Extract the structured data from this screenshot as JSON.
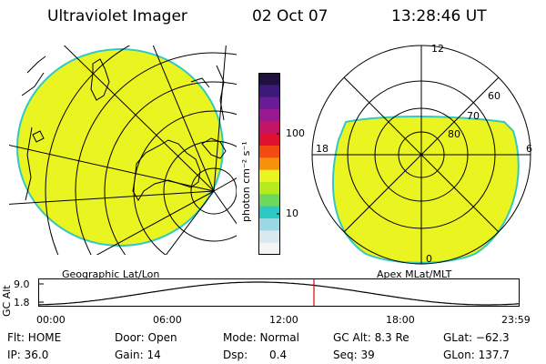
{
  "header": {
    "title": "Ultraviolet Imager",
    "date": "02 Oct 07",
    "time": "13:28:46 UT"
  },
  "colors": {
    "emission_fill": "#eaf421",
    "emission_edge": "#33c9c3",
    "grid_line": "#000000",
    "time_marker": "#e00000"
  },
  "left_map": {
    "caption": "Geographic Lat/Lon"
  },
  "color_bar": {
    "unit_label": "photon cm⁻² s⁻¹",
    "tick_labels": [
      "100",
      "10"
    ],
    "colors_top_to_bottom": [
      "#201040",
      "#3b1a7a",
      "#6a1c96",
      "#9a1890",
      "#c41464",
      "#e0102e",
      "#f24a10",
      "#f6910c",
      "#eaf421",
      "#b8ea20",
      "#6cd85c",
      "#2cc9c4",
      "#9ad8e4",
      "#d8e8ee",
      "#f4f4f4"
    ]
  },
  "polar_plot": {
    "caption": "Apex MLat/MLT",
    "mlt_labels": {
      "top": "12",
      "left": "18",
      "right": "6",
      "bottom": "0"
    },
    "lat_labels": [
      "60",
      "70",
      "80"
    ]
  },
  "altitude_strip": {
    "axis_label": "GC Alt",
    "y_ticks": [
      "9.0",
      "1.8"
    ],
    "x_ticks": [
      "00:00",
      "06:00",
      "12:00",
      "18:00",
      "23:59"
    ]
  },
  "status": {
    "flt": "Flt: HOME",
    "ip": "IP: 36.0",
    "door": "Door: Open",
    "gain": "Gain: 14",
    "mode": "Mode: Normal",
    "dsp_label": "Dsp:",
    "dsp_value": "0.4",
    "gc_alt": "GC Alt: 8.3 Re",
    "seq": "Seq: 39",
    "glat": "GLat: −62.3",
    "glon": "GLon: 137.7"
  }
}
